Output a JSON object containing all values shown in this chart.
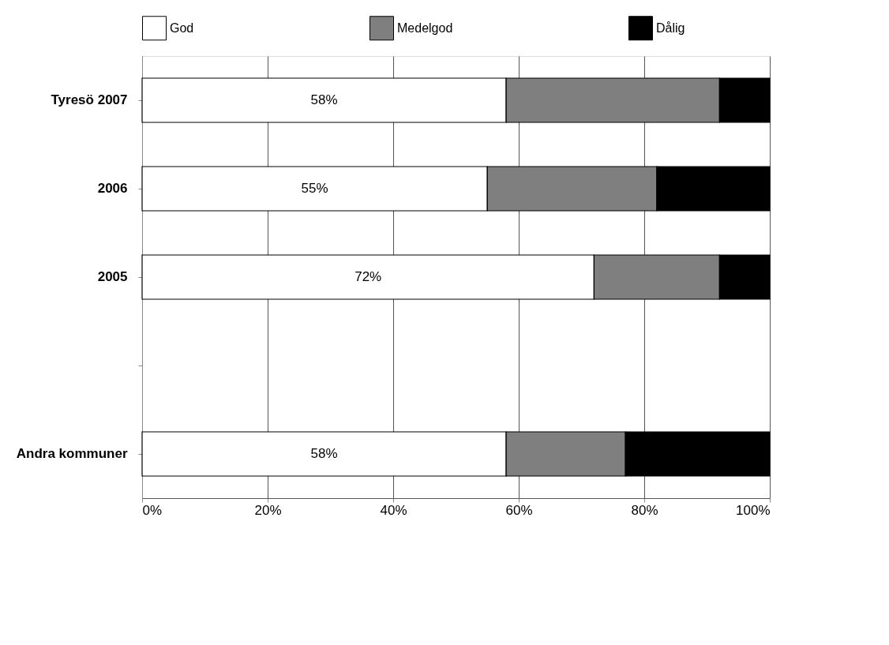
{
  "chart_data": {
    "type": "bar",
    "orientation": "horizontal",
    "stacked": true,
    "categories": [
      "Tyresö 2007",
      "2006",
      "2005",
      null,
      "Andra kommuner"
    ],
    "series": [
      {
        "name": "God",
        "color": "#ffffff",
        "values": [
          58,
          55,
          72,
          null,
          58
        ],
        "value_labels": [
          "58%",
          "55%",
          "72%",
          null,
          "58%"
        ]
      },
      {
        "name": "Medelgod",
        "color": "#7f7f7f",
        "values": [
          34,
          27,
          20,
          null,
          19
        ]
      },
      {
        "name": "Dålig",
        "color": "#000000",
        "values": [
          8,
          18,
          8,
          null,
          23
        ]
      }
    ],
    "xlim": [
      0,
      100
    ],
    "xticks": [
      {
        "value": 0,
        "label": "0%"
      },
      {
        "value": 20,
        "label": "20%"
      },
      {
        "value": 40,
        "label": "40%"
      },
      {
        "value": 60,
        "label": "60%"
      },
      {
        "value": 80,
        "label": "80%"
      },
      {
        "value": 100,
        "label": "100%"
      }
    ],
    "grid": "x",
    "legend": "top"
  }
}
